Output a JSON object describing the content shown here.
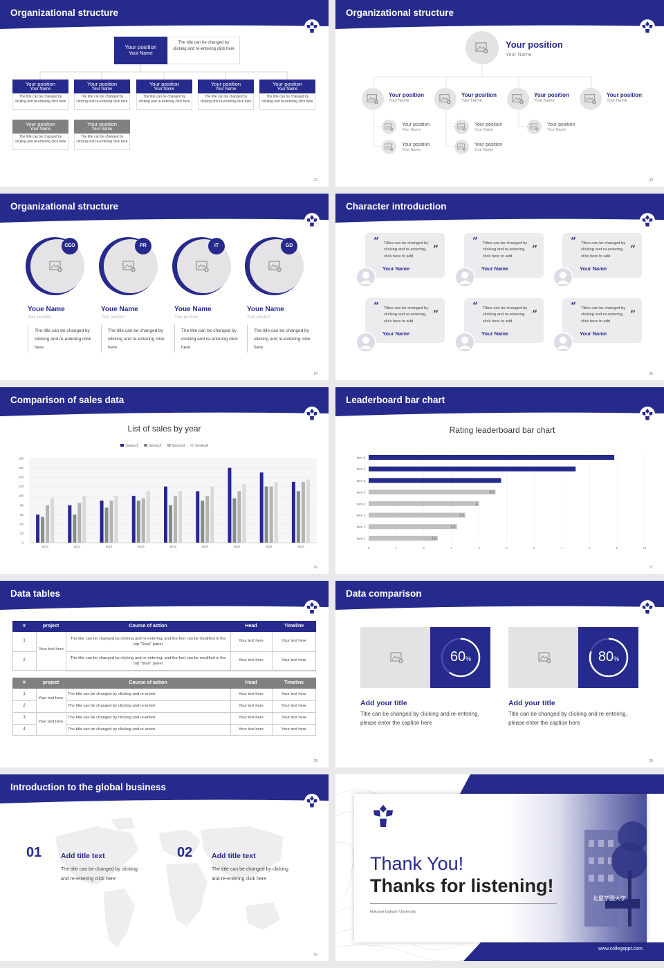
{
  "colors": {
    "navy": "#262a8c",
    "gray": "#808080",
    "light": "#e9e7ea",
    "bar_light": "#c0c0c0"
  },
  "icons": {
    "placeholder": "image-placeholder-icon",
    "person": "person-icon",
    "quote": "quote-icon",
    "logo": "university-logo-icon"
  },
  "slides": [
    {
      "title": "Organizational structure",
      "page": "22",
      "top": {
        "label": "Your position",
        "name": "Your Name",
        "desc": "The title can be changed by clicking and re-entering click here"
      },
      "row1": [
        {
          "label": "Your position",
          "name": "Your Name",
          "desc": "The title can be changed by clicking and re-entering click here"
        },
        {
          "label": "Your position",
          "name": "Your Name",
          "desc": "The title can be changed by clicking and re-entering click here"
        },
        {
          "label": "Your position",
          "name": "Your Name",
          "desc": "The title can be changed by clicking and re-entering click here"
        },
        {
          "label": "Your position",
          "name": "Your Name",
          "desc": "The title can be changed by clicking and re-entering click here"
        },
        {
          "label": "Your position",
          "name": "Your Name",
          "desc": "The title can be changed by clicking and re-entering click here"
        }
      ],
      "row2": [
        {
          "label": "Your position",
          "name": "Your Name",
          "desc": "The title can be changed by clicking and re-entering click here"
        },
        {
          "label": "Your position",
          "name": "Your Name",
          "desc": "The title can be changed by clicking and re-entering click here"
        }
      ]
    },
    {
      "title": "Organizational structure",
      "page": "23",
      "top": {
        "label": "Your position",
        "name": "Your Name"
      },
      "level2": [
        {
          "label": "Your position",
          "name": "Your Name"
        },
        {
          "label": "Your position",
          "name": "Your Name"
        },
        {
          "label": "Your position",
          "name": "Your Name"
        },
        {
          "label": "Your position",
          "name": "Your Name"
        }
      ],
      "level3": [
        {
          "label": "Your position",
          "name": "Your Name"
        },
        {
          "label": "Your position",
          "name": "Your Name"
        },
        {
          "label": "Your position",
          "name": "Your Name"
        },
        {
          "label": "Your position",
          "name": "Your Name"
        },
        {
          "label": "Your position",
          "name": "Your Name"
        }
      ]
    },
    {
      "title": "Organizational structure",
      "page": "24",
      "people": [
        {
          "badge": "CEO",
          "name": "Youe Name",
          "position": "Your position",
          "desc": "The title can be changed by clicking and re-entering click here"
        },
        {
          "badge": "PR",
          "name": "Youe Name",
          "position": "Your position",
          "desc": "The title can be changed by clicking and re-entering click here"
        },
        {
          "badge": "IT",
          "name": "Youe Name",
          "position": "Your position",
          "desc": "The title can be changed by clicking and re-entering click here"
        },
        {
          "badge": "GD",
          "name": "Youe Name",
          "position": "Your position",
          "desc": "The title can be changed by clicking and re-entering click here"
        }
      ]
    },
    {
      "title": "Character introduction",
      "page": "25",
      "cards": [
        {
          "text": "Titles can be changed by clicking and re-entering, click here to add",
          "name": "Your Name"
        },
        {
          "text": "Titles can be changed by clicking and re-entering, click here to add",
          "name": "Your Name"
        },
        {
          "text": "Titles can be changed by clicking and re-entering, click here to add",
          "name": "Your Name"
        },
        {
          "text": "Titles can be changed by clicking and re-entering, click here to add",
          "name": "Your Name"
        },
        {
          "text": "Titles can be changed by clicking and re-entering, click here to add",
          "name": "Your Name"
        },
        {
          "text": "Titles can be changed by clicking and re-entering, click here to add",
          "name": "Your Name"
        }
      ]
    },
    {
      "title": "Comparison of sales data",
      "page": "26"
    },
    {
      "title": "Leaderboard bar chart",
      "page": "27"
    },
    {
      "title": "Data tables",
      "page": "28",
      "table1": {
        "headers": [
          "#",
          "project",
          "Course of action",
          "Head",
          "Timeline"
        ],
        "project": "Your text here",
        "rows": [
          {
            "num": "1",
            "course": "The title can be changed by clicking and re-entering, and the font can be modified in the top \"Start\" panel",
            "head": "Your text here",
            "timeline": "Your text here"
          },
          {
            "num": "2",
            "course": "The title can be changed by clicking and re-entering, and the font can be modified in the top \"Start\" panel",
            "head": "Your text here",
            "timeline": "Your text here"
          }
        ]
      },
      "table2": {
        "headers": [
          "#",
          "project",
          "Course of action",
          "Head",
          "Timeline"
        ],
        "projects": [
          "Your text here",
          "Your text here"
        ],
        "rows": [
          {
            "num": "1",
            "course": "The title can be changed by clicking and re-enteri",
            "head": "Your text here",
            "timeline": "Your text here"
          },
          {
            "num": "2",
            "course": "The title can be changed by clicking and re-enteri",
            "head": "Your text here",
            "timeline": "Your text here"
          },
          {
            "num": "3",
            "course": "The title can be changed by clicking and re-enteri",
            "head": "Your text here",
            "timeline": "Your text here"
          },
          {
            "num": "4",
            "course": "The title can be changed by clicking and re-enteri",
            "head": "Your text here",
            "timeline": "Your text here"
          }
        ]
      }
    },
    {
      "title": "Data comparison",
      "page": "29",
      "items": [
        {
          "percent": 60,
          "value": "60",
          "unit": "%",
          "title": "Add your title",
          "desc": "Title can be changed by clicking and re-entering, please enter the caption here"
        },
        {
          "percent": 80,
          "value": "80",
          "unit": "%",
          "title": "Add your title",
          "desc": "Title can be changed by clicking and re-entering, please enter the caption here"
        }
      ]
    },
    {
      "title": "Introduction to the global business",
      "page": "30",
      "items": [
        {
          "num": "01",
          "title": "Add title text",
          "desc1": "The title can be changed by clicking",
          "desc2": "and re-entering click here"
        },
        {
          "num": "02",
          "title": "Add title text",
          "desc1": "The title can be changed by clicking",
          "desc2": "and re-entering click here"
        }
      ]
    },
    {
      "line1": "Thank You!",
      "line2": "Thanks for listening!",
      "university": "Hokusei Gakuen University",
      "url": "www.collegeppt.com",
      "sign": "北星学園大学"
    }
  ],
  "chart_data": [
    {
      "type": "bar",
      "title": "List of sales by year",
      "xlabel": "",
      "ylabel": "",
      "categories": [
        "2010",
        "2012",
        "2014",
        "2016",
        "2018",
        "2020",
        "2022",
        "2024",
        "2026"
      ],
      "ylim": [
        0,
        180
      ],
      "yticks": [
        "0",
        "20",
        "40",
        "60",
        "80",
        "100",
        "120",
        "140",
        "160",
        "180"
      ],
      "legend": "top-center",
      "series": [
        {
          "name": "Series1",
          "color": "#262a8c",
          "values": [
            60,
            80,
            90,
            100,
            120,
            110,
            160,
            150,
            130
          ]
        },
        {
          "name": "Series2",
          "color": "#8a8a8a",
          "values": [
            55,
            60,
            75,
            90,
            80,
            90,
            95,
            120,
            110
          ]
        },
        {
          "name": "Series3",
          "color": "#b4b4b4",
          "values": [
            80,
            85,
            90,
            95,
            100,
            100,
            110,
            120,
            130
          ]
        },
        {
          "name": "Series4",
          "color": "#d9d9d9",
          "values": [
            95,
            100,
            100,
            110,
            110,
            120,
            125,
            130,
            135
          ]
        }
      ]
    },
    {
      "type": "bar",
      "orientation": "horizontal",
      "title": "Rating leaderboard bar chart",
      "xlabel": "",
      "ylabel": "",
      "categories": [
        "Item 8",
        "Item 7",
        "Item 6",
        "Item 5",
        "Item 4",
        "Item 3",
        "Item 2",
        "Item 1"
      ],
      "values": [
        8.9,
        7.5,
        4.8,
        4.6,
        4,
        3.5,
        3.2,
        2.5
      ],
      "labels": [
        "",
        "",
        "",
        "4.6",
        "4",
        "3.5",
        "3.2",
        "2.5"
      ],
      "highlight": [
        "Item 8",
        "Item 7",
        "Item 6"
      ],
      "xlim": [
        0,
        10
      ],
      "xticks": [
        "0",
        "1",
        "2",
        "3",
        "4",
        "5",
        "6",
        "7",
        "8",
        "9",
        "10"
      ]
    }
  ]
}
